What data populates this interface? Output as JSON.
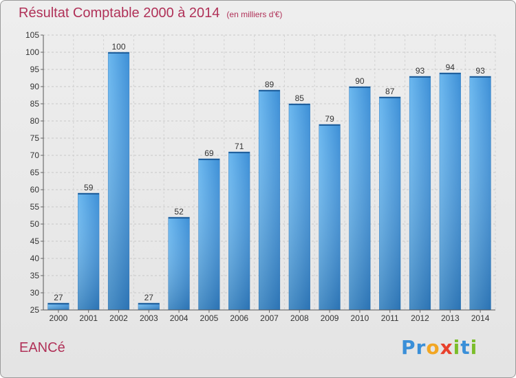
{
  "chart_data": {
    "type": "bar",
    "title": "Résultat Comptable 2000 à 2014",
    "unit": "(en milliers d'€)",
    "categories": [
      "2000",
      "2001",
      "2002",
      "2003",
      "2004",
      "2005",
      "2006",
      "2007",
      "2008",
      "2009",
      "2010",
      "2011",
      "2012",
      "2013",
      "2014"
    ],
    "values": [
      27,
      59,
      100,
      27,
      52,
      69,
      71,
      89,
      85,
      79,
      90,
      87,
      93,
      94,
      93
    ],
    "ylim": [
      25,
      105
    ],
    "yticks": [
      25,
      30,
      35,
      40,
      45,
      50,
      55,
      60,
      65,
      70,
      75,
      80,
      85,
      90,
      95,
      100,
      105
    ],
    "grid": true,
    "bar_color": "#4a9de0"
  },
  "footer": {
    "town": "EANCé",
    "logo": [
      "P",
      "r",
      "o",
      "x",
      "i",
      "t",
      "i"
    ],
    "logo_colors": [
      "#3a8fd8",
      "#3a8fd8",
      "#f2a623",
      "#e8412c",
      "#7bbd2a",
      "#3a8fd8",
      "#7bbd2a"
    ]
  }
}
